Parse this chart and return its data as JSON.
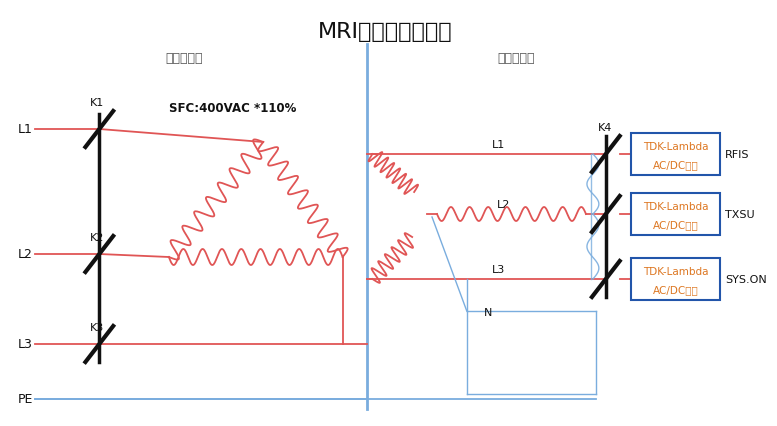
{
  "title": "MRI部分供电示意图",
  "title_fontsize": 16,
  "subtitle_left": "变压器原边",
  "subtitle_right": "变压器副边",
  "label_sfc": "SFC:400VAC *110%",
  "boxes": [
    {
      "label1": "TDK-Lambda",
      "label2": "AC/DC电源",
      "tag": "RFIS"
    },
    {
      "label1": "TDK-Lambda",
      "label2": "AC/DC电源",
      "tag": "TXSU"
    },
    {
      "label1": "TDK-Lambda",
      "label2": "AC/DC电源",
      "tag": "SYS.ON"
    }
  ],
  "bg_color": "#ffffff",
  "line_color_red": "#e05555",
  "line_color_black": "#111111",
  "line_color_blue": "#7aadde",
  "coil_color": "#e05555",
  "box_edge_color": "#2255aa",
  "box_text_color": "#dd7722"
}
